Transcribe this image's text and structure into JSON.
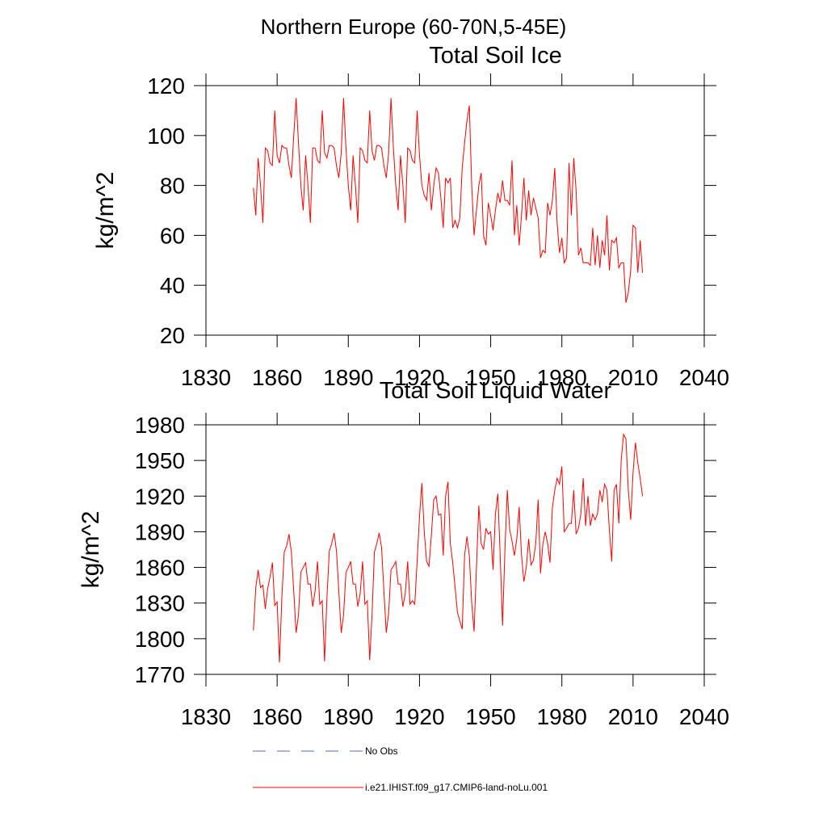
{
  "title": "Northern Europe (60-70N,5-45E)",
  "legend": [
    {
      "label": "No Obs",
      "color": "#5a6aa8",
      "dash": "dashed"
    }
  ],
  "chart_data": [
    {
      "type": "line",
      "title": "Total Soil Ice",
      "ylabel": "kg/m^2",
      "x": [
        1850,
        1851,
        1852,
        1853,
        1854,
        1855,
        1856,
        1857,
        1858,
        1859,
        1860,
        1861,
        1862,
        1863,
        1864,
        1865,
        1866,
        1867,
        1868,
        1869,
        1870,
        1871,
        1872,
        1873,
        1874,
        1875,
        1876,
        1877,
        1878,
        1879,
        1880,
        1881,
        1882,
        1883,
        1884,
        1885,
        1886,
        1887,
        1888,
        1889,
        1890,
        1891,
        1892,
        1893,
        1894,
        1895,
        1896,
        1897,
        1898,
        1899,
        1900,
        1901,
        1902,
        1903,
        1904,
        1905,
        1906,
        1907,
        1908,
        1909,
        1910,
        1911,
        1912,
        1913,
        1914,
        1915,
        1916,
        1917,
        1918,
        1919,
        1920,
        1921,
        1922,
        1923,
        1924,
        1925,
        1926,
        1927,
        1928,
        1929,
        1930,
        1931,
        1932,
        1933,
        1934,
        1935,
        1936,
        1937,
        1938,
        1939,
        1940,
        1941,
        1942,
        1943,
        1944,
        1945,
        1946,
        1947,
        1948,
        1949,
        1950,
        1951,
        1952,
        1953,
        1954,
        1955,
        1956,
        1957,
        1958,
        1959,
        1960,
        1961,
        1962,
        1963,
        1964,
        1965,
        1966,
        1967,
        1968,
        1969,
        1970,
        1971,
        1972,
        1973,
        1974,
        1975,
        1976,
        1977,
        1978,
        1979,
        1980,
        1981,
        1982,
        1983,
        1984,
        1985,
        1986,
        1987,
        1988,
        1989,
        1990,
        1991,
        1992,
        1993,
        1994,
        1995,
        1996,
        1997,
        1998,
        1999,
        2000,
        2001,
        2002,
        2003,
        2004,
        2005,
        2006,
        2007,
        2008,
        2009,
        2010,
        2011,
        2012,
        2013,
        2014
      ],
      "series": [
        {
          "name": "i.e21.IHIST.f09_g17.CMIP6-land-noLu.001",
          "color": "#ff0000",
          "values": [
            79,
            68,
            91,
            80,
            65,
            95,
            94,
            89,
            88,
            110,
            92,
            89,
            96,
            95,
            95,
            88,
            83,
            100,
            115,
            97,
            80,
            70,
            92,
            80,
            65,
            95,
            95,
            90,
            89,
            110,
            93,
            91,
            96,
            96,
            95,
            88,
            83,
            93,
            115,
            95,
            80,
            70,
            92,
            80,
            65,
            95,
            94,
            90,
            89,
            110,
            94,
            90,
            96,
            96,
            95,
            88,
            83,
            93,
            115,
            95,
            80,
            70,
            92,
            80,
            65,
            95,
            94,
            90,
            89,
            110,
            92,
            80,
            76,
            74,
            85,
            70,
            80,
            87,
            85,
            75,
            63,
            83,
            81,
            83,
            63,
            66,
            63,
            67,
            87,
            97,
            106,
            112,
            80,
            60,
            70,
            80,
            85,
            60,
            56,
            73,
            68,
            62,
            70,
            77,
            73,
            82,
            74,
            74,
            72,
            90,
            60,
            72,
            56,
            68,
            83,
            66,
            78,
            68,
            75,
            71,
            67,
            51,
            54,
            53,
            73,
            68,
            74,
            87,
            65,
            53,
            59,
            49,
            51,
            89,
            68,
            91,
            78,
            52,
            55,
            49,
            49,
            49,
            48,
            63,
            48,
            60,
            47,
            58,
            52,
            68,
            46,
            58,
            57,
            59,
            47,
            49,
            49,
            33,
            37,
            46,
            64,
            63,
            45,
            58,
            45
          ]
        }
      ],
      "xlim": [
        1830,
        2040
      ],
      "xticks": [
        1830,
        1860,
        1890,
        1920,
        1950,
        1980,
        2010,
        2040
      ],
      "ylim": [
        20,
        120
      ],
      "yticks": [
        20,
        40,
        60,
        80,
        100,
        120
      ]
    },
    {
      "type": "line",
      "title": "Total Soil Liquid Water",
      "ylabel": "kg/m^2",
      "x": [
        1850,
        1851,
        1852,
        1853,
        1854,
        1855,
        1856,
        1857,
        1858,
        1859,
        1860,
        1861,
        1862,
        1863,
        1864,
        1865,
        1866,
        1867,
        1868,
        1869,
        1870,
        1871,
        1872,
        1873,
        1874,
        1875,
        1876,
        1877,
        1878,
        1879,
        1880,
        1881,
        1882,
        1883,
        1884,
        1885,
        1886,
        1887,
        1888,
        1889,
        1890,
        1891,
        1892,
        1893,
        1894,
        1895,
        1896,
        1897,
        1898,
        1899,
        1900,
        1901,
        1902,
        1903,
        1904,
        1905,
        1906,
        1907,
        1908,
        1909,
        1910,
        1911,
        1912,
        1913,
        1914,
        1915,
        1916,
        1917,
        1918,
        1919,
        1920,
        1921,
        1922,
        1923,
        1924,
        1925,
        1926,
        1927,
        1928,
        1929,
        1930,
        1931,
        1932,
        1933,
        1934,
        1935,
        1936,
        1937,
        1938,
        1939,
        1940,
        1941,
        1942,
        1943,
        1944,
        1945,
        1946,
        1947,
        1948,
        1949,
        1950,
        1951,
        1952,
        1953,
        1954,
        1955,
        1956,
        1957,
        1958,
        1959,
        1960,
        1961,
        1962,
        1963,
        1964,
        1965,
        1966,
        1967,
        1968,
        1969,
        1970,
        1971,
        1972,
        1973,
        1974,
        1975,
        1976,
        1977,
        1978,
        1979,
        1980,
        1981,
        1982,
        1983,
        1984,
        1985,
        1986,
        1987,
        1988,
        1989,
        1990,
        1991,
        1992,
        1993,
        1994,
        1995,
        1996,
        1997,
        1998,
        1999,
        2000,
        2001,
        2002,
        2003,
        2004,
        2005,
        2006,
        2007,
        2008,
        2009,
        2010,
        2011,
        2012,
        2013,
        2014
      ],
      "series": [
        {
          "name": "i.e21.IHIST.f09_g17.CMIP6-land-noLu.001",
          "color": "#ff0000",
          "values": [
            1807,
            1843,
            1858,
            1843,
            1845,
            1825,
            1842,
            1852,
            1864,
            1828,
            1831,
            1780,
            1835,
            1873,
            1878,
            1888,
            1873,
            1840,
            1805,
            1820,
            1856,
            1860,
            1864,
            1846,
            1846,
            1827,
            1840,
            1865,
            1829,
            1832,
            1781,
            1835,
            1874,
            1880,
            1889,
            1874,
            1840,
            1805,
            1820,
            1856,
            1860,
            1865,
            1846,
            1846,
            1827,
            1838,
            1865,
            1829,
            1832,
            1782,
            1820,
            1873,
            1880,
            1889,
            1877,
            1840,
            1805,
            1822,
            1858,
            1861,
            1865,
            1846,
            1846,
            1827,
            1838,
            1865,
            1829,
            1832,
            1829,
            1865,
            1903,
            1931,
            1890,
            1865,
            1861,
            1887,
            1917,
            1920,
            1904,
            1905,
            1870,
            1920,
            1932,
            1880,
            1864,
            1843,
            1822,
            1815,
            1808,
            1870,
            1886,
            1870,
            1830,
            1806,
            1860,
            1912,
            1880,
            1875,
            1893,
            1888,
            1890,
            1858,
            1905,
            1922,
            1870,
            1811,
            1875,
            1925,
            1892,
            1882,
            1870,
            1884,
            1911,
            1870,
            1848,
            1860,
            1884,
            1862,
            1866,
            1880,
            1917,
            1855,
            1880,
            1890,
            1880,
            1864,
            1910,
            1925,
            1935,
            1930,
            1945,
            1890,
            1893,
            1897,
            1897,
            1925,
            1888,
            1893,
            1905,
            1935,
            1895,
            1920,
            1895,
            1905,
            1900,
            1905,
            1925,
            1915,
            1930,
            1925,
            1892,
            1865,
            1925,
            1930,
            1897,
            1950,
            1972,
            1968,
            1925,
            1900,
            1940,
            1965,
            1948,
            1935,
            1920
          ]
        }
      ],
      "xlim": [
        1830,
        2040
      ],
      "xticks": [
        1830,
        1860,
        1890,
        1920,
        1950,
        1980,
        2010,
        2040
      ],
      "ylim": [
        1770,
        1980
      ],
      "yticks": [
        1770,
        1800,
        1830,
        1860,
        1890,
        1920,
        1950,
        1980
      ]
    }
  ]
}
